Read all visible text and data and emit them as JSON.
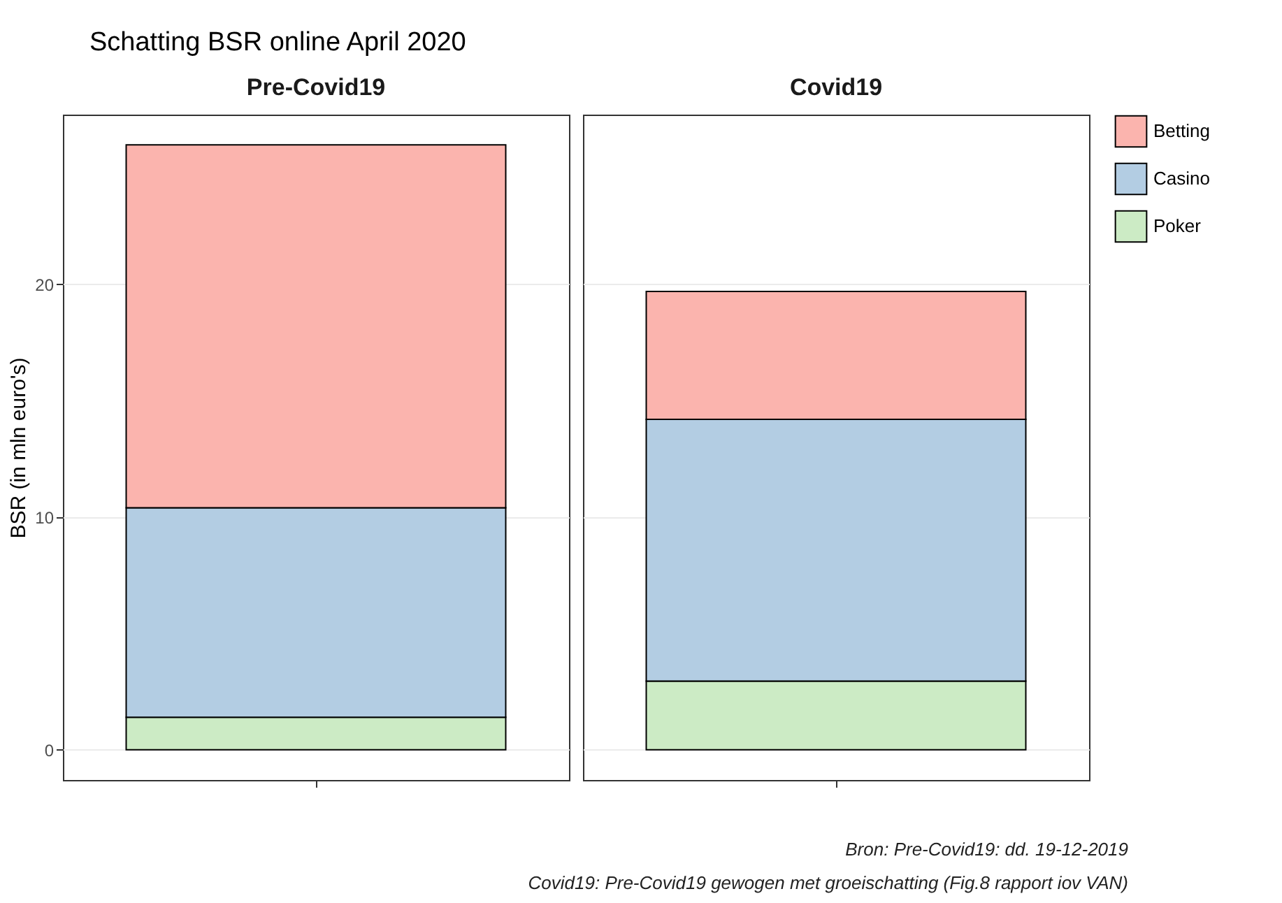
{
  "chart_data": {
    "type": "bar",
    "title": "Schatting BSR online April 2020",
    "ylabel": "BSR (in mln euro's)",
    "categories": [
      "Pre-Covid19",
      "Covid19"
    ],
    "stacked": true,
    "ylim": [
      -1.3,
      27.3
    ],
    "yticks": [
      0,
      10,
      20
    ],
    "grid": "y",
    "legend": "right",
    "annotations": [
      "Bron:   Pre-Covid19: dd. 19-12-2019",
      "Covid19: Pre-Covid19 gewogen met groeischatting (Fig.8 rapport iov VAN)"
    ],
    "series": [
      {
        "name": "Poker",
        "color": "#ccebc5",
        "values": [
          1.4,
          2.95
        ]
      },
      {
        "name": "Casino",
        "color": "#b3cde3",
        "values": [
          9.0,
          11.25
        ]
      },
      {
        "name": "Betting",
        "color": "#fbb4ae",
        "values": [
          15.6,
          5.5
        ]
      }
    ]
  }
}
